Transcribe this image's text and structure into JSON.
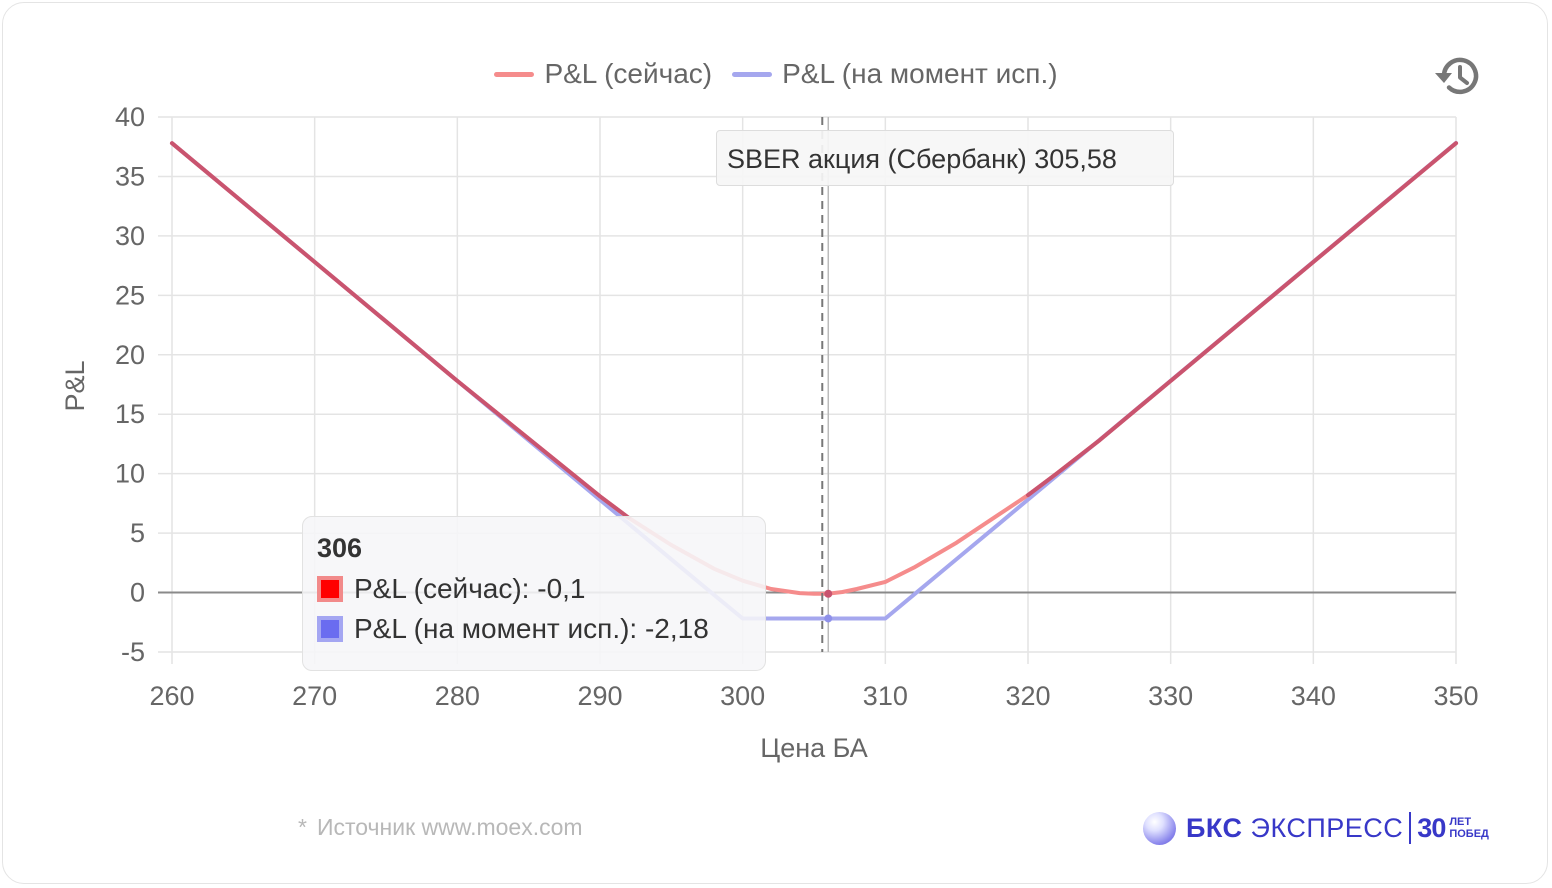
{
  "legend": {
    "now_label": "P&L (сейчас)",
    "expiry_label": "P&L (на момент исп.)"
  },
  "annotation": {
    "text": "SBER акция (Сбербанк) 305,58"
  },
  "tooltip": {
    "title": "306",
    "rows": [
      {
        "text": "P&L (сейчас): -0,1",
        "color": "#ff0000",
        "border": "#f28a8a"
      },
      {
        "text": "P&L (на момент исп.): -2,18",
        "color": "#6a6cf0",
        "border": "#a4a6f2"
      }
    ]
  },
  "footer": {
    "source_star": "*",
    "source_text": "Источник www.moex.com",
    "brand_bks": "БКС",
    "brand_express": "ЭКСПРЕСС",
    "brand_30": "30",
    "brand_let": "ЛЕТ",
    "brand_pobed": "ПОБЕД"
  },
  "icons": {
    "history": "history-icon"
  },
  "colors": {
    "now_line": "#f58c8c",
    "expiry_line": "#a5a7ee",
    "overlap_line": "#c9546f",
    "brand": "#3838c8"
  },
  "chart_data": {
    "type": "line",
    "title": "",
    "xlabel": "Цена БА",
    "ylabel": "P&L",
    "xlim": [
      260,
      350
    ],
    "ylim": [
      -5,
      40
    ],
    "xticks": [
      "260",
      "270",
      "280",
      "290",
      "300",
      "310",
      "320",
      "330",
      "340",
      "350"
    ],
    "yticks": [
      "40",
      "35",
      "30",
      "25",
      "20",
      "15",
      "10",
      "5",
      "0",
      "-5"
    ],
    "grid": true,
    "legend_position": "top",
    "current_price": 305.58,
    "x": [
      260,
      270,
      280,
      290,
      292,
      295,
      298,
      300,
      302,
      304,
      305,
      306,
      307,
      308,
      310,
      312,
      315,
      318,
      320,
      322,
      325,
      330,
      340,
      350
    ],
    "series": [
      {
        "name": "P&L (сейчас)",
        "values": [
          37.8,
          27.8,
          17.8,
          8.1,
          6.3,
          4.0,
          2.0,
          1.0,
          0.3,
          -0.05,
          -0.1,
          -0.1,
          0.05,
          0.3,
          0.9,
          2.1,
          4.2,
          6.6,
          8.2,
          10.0,
          12.8,
          17.8,
          27.8,
          37.8
        ]
      },
      {
        "name": "P&L (на момент исп.)",
        "values": [
          37.8,
          27.8,
          17.8,
          7.8,
          5.8,
          2.8,
          -0.2,
          -2.18,
          -2.18,
          -2.18,
          -2.18,
          -2.18,
          -2.18,
          -2.18,
          -2.18,
          -0.18,
          2.82,
          5.82,
          7.82,
          9.82,
          12.82,
          17.82,
          27.82,
          37.82
        ]
      }
    ],
    "tooltip_x": 306,
    "tooltip_values": [
      -0.1,
      -2.18
    ]
  }
}
